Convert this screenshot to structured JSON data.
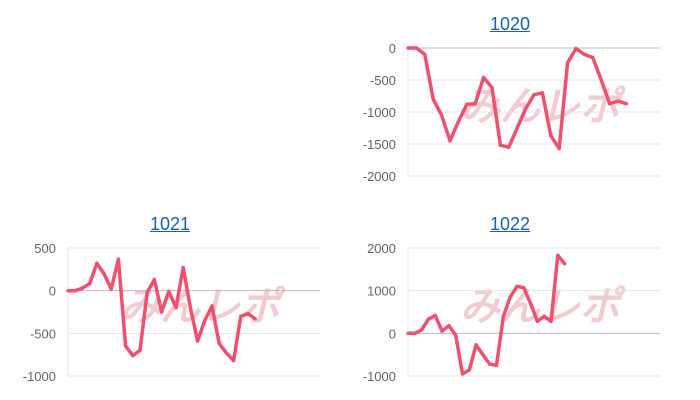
{
  "line_color": "#f0506e",
  "title_color": "#1a5fa8",
  "watermark": "みんレポ",
  "chart_data": [
    {
      "type": "line",
      "title": "1020",
      "ylim": [
        -2000,
        0
      ],
      "yticks": [
        0,
        -500,
        -1000,
        -1500,
        -2000
      ],
      "ytick_labels": [
        "0",
        "-500",
        "-1000",
        "-1500",
        "-2000"
      ],
      "xlim": [
        0,
        30
      ],
      "grid": true,
      "values": [
        0,
        0,
        -100,
        -800,
        -1050,
        -1450,
        -1150,
        -880,
        -870,
        -460,
        -620,
        -1520,
        -1550,
        -1250,
        -950,
        -730,
        -700,
        -1370,
        -1570,
        -230,
        -10,
        -100,
        -150,
        -500,
        -870,
        -830,
        -870
      ]
    },
    {
      "type": "line",
      "title": "1021",
      "ylim": [
        -1000,
        500
      ],
      "yticks": [
        500,
        0,
        -500,
        -1000
      ],
      "ytick_labels": [
        "500",
        "0",
        "-500",
        "-1000"
      ],
      "xlim": [
        0,
        35
      ],
      "grid": true,
      "values": [
        0,
        0,
        30,
        80,
        320,
        200,
        20,
        370,
        -650,
        -760,
        -700,
        -20,
        130,
        -250,
        -10,
        -200,
        270,
        -200,
        -590,
        -350,
        -180,
        -620,
        -730,
        -820,
        -300,
        -270,
        -330
      ]
    },
    {
      "type": "line",
      "title": "1022",
      "ylim": [
        -1000,
        2000
      ],
      "yticks": [
        2000,
        1000,
        0,
        -1000
      ],
      "ytick_labels": [
        "2000",
        "1000",
        "0",
        "-1000"
      ],
      "xlim": [
        0,
        37
      ],
      "grid": true,
      "values": [
        0,
        0,
        80,
        330,
        420,
        50,
        180,
        -40,
        -950,
        -860,
        -270,
        -500,
        -720,
        -750,
        400,
        850,
        1100,
        1070,
        700,
        280,
        400,
        280,
        1830,
        1630
      ]
    }
  ]
}
